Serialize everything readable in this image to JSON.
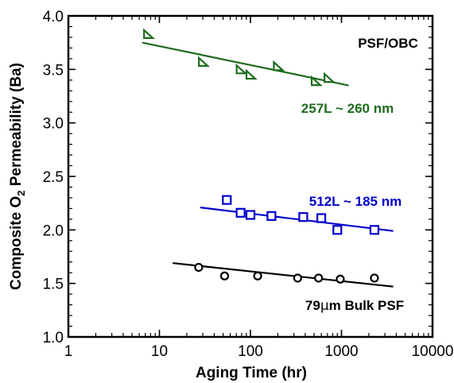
{
  "chart_data": {
    "type": "scatter",
    "xscale": "log",
    "xlim": [
      1,
      10000
    ],
    "ylim": [
      1.0,
      4.0
    ],
    "grid": false,
    "xlabel": "Aging Time (hr)",
    "ylabel_parts": [
      "Composite O",
      "2",
      " Permeability (Ba)"
    ],
    "xticks": [
      1,
      10,
      100,
      1000,
      10000
    ],
    "xtick_labels": [
      "1",
      "10",
      "100",
      "1000",
      "10000"
    ],
    "yticks": [
      1.0,
      1.5,
      2.0,
      2.5,
      3.0,
      3.5,
      4.0
    ],
    "ytick_labels": [
      "1.0",
      "1.5",
      "2.0",
      "2.5",
      "3.0",
      "3.5",
      "4.0"
    ],
    "annotations": {
      "system": "PSF/OBC",
      "s1_label": "257L ~ 260 nm",
      "s2_label": "512L ~ 185 nm",
      "s3_prefix": "79",
      "s3_mu": "μ",
      "s3_suffix": "m Bulk PSF"
    },
    "series": [
      {
        "marker": "triangle",
        "color": "#1e6b1e",
        "points": [
          [
            7.5,
            3.83
          ],
          [
            30,
            3.57
          ],
          [
            78,
            3.5
          ],
          [
            100,
            3.45
          ],
          [
            200,
            3.53
          ],
          [
            520,
            3.39
          ],
          [
            720,
            3.42
          ]
        ],
        "fit": [
          [
            6.5,
            3.75
          ],
          [
            1200,
            3.35
          ]
        ]
      },
      {
        "marker": "square",
        "color": "#0000cc",
        "points": [
          [
            55,
            2.28
          ],
          [
            78,
            2.16
          ],
          [
            100,
            2.14
          ],
          [
            170,
            2.13
          ],
          [
            380,
            2.12
          ],
          [
            600,
            2.11
          ],
          [
            900,
            2.0
          ],
          [
            2300,
            2.0
          ]
        ],
        "fit": [
          [
            28,
            2.21
          ],
          [
            3700,
            1.99
          ]
        ]
      },
      {
        "marker": "circle",
        "color": "#000000",
        "points": [
          [
            27,
            1.65
          ],
          [
            52,
            1.57
          ],
          [
            120,
            1.57
          ],
          [
            330,
            1.55
          ],
          [
            560,
            1.55
          ],
          [
            970,
            1.54
          ],
          [
            2300,
            1.55
          ]
        ],
        "fit": [
          [
            14,
            1.69
          ],
          [
            3700,
            1.47
          ]
        ]
      }
    ]
  }
}
